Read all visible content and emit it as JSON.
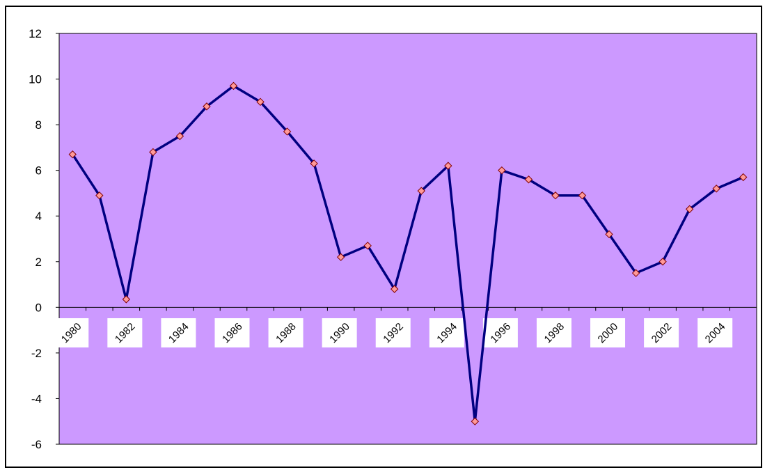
{
  "chart_data": {
    "type": "line",
    "title": "",
    "xlabel": "",
    "ylabel": "",
    "x": [
      1980,
      1981,
      1982,
      1983,
      1984,
      1985,
      1986,
      1987,
      1988,
      1989,
      1990,
      1991,
      1992,
      1993,
      1994,
      1995,
      1996,
      1997,
      1998,
      1999,
      2000,
      2001,
      2002,
      2003,
      2004,
      2005
    ],
    "x_tick_labels": [
      "1980",
      "1982",
      "1984",
      "1986",
      "1988",
      "1990",
      "1992",
      "1994",
      "1996",
      "1998",
      "2000",
      "2002",
      "2004"
    ],
    "series": [
      {
        "values": [
          6.7,
          4.9,
          0.35,
          6.8,
          7.5,
          8.8,
          9.7,
          9.0,
          7.7,
          6.3,
          2.2,
          2.7,
          0.8,
          5.1,
          6.2,
          -5.0,
          6.0,
          5.6,
          4.9,
          4.9,
          3.2,
          1.5,
          2.0,
          4.3,
          5.2,
          5.7
        ]
      }
    ],
    "ylim": [
      -6,
      12
    ],
    "y_ticks": [
      12,
      10,
      8,
      6,
      4,
      2,
      0,
      -2,
      -4,
      -6
    ],
    "grid": false,
    "legend": "none",
    "colors": {
      "plot_background": "#cc99ff",
      "line": "#000080",
      "marker_fill": "#ff9999",
      "marker_stroke": "#800000",
      "label_background": "#ffffff"
    }
  }
}
